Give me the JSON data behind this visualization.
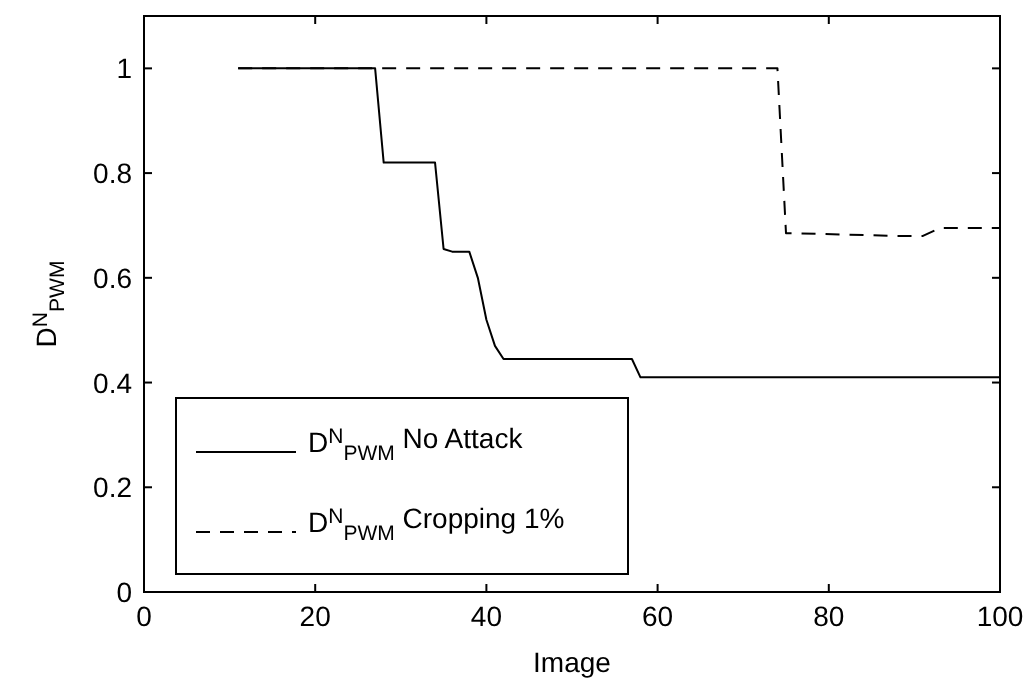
{
  "chart_data": {
    "type": "line",
    "xlabel": "Image",
    "ylabel": "D$^{N}$$_{PWM}$",
    "xlim": [
      0,
      100
    ],
    "ylim": [
      0,
      1.1
    ],
    "xticks": [
      0,
      20,
      40,
      60,
      80,
      100
    ],
    "yticks": [
      0,
      0.2,
      0.4,
      0.6,
      0.8,
      1
    ],
    "grid": false,
    "legend": "bottom left",
    "series": [
      {
        "name": "D$^{N}$$_{PWM}$ No Attack",
        "color": "#000000",
        "line_style": "solid",
        "x": [
          11,
          27,
          28,
          34,
          35,
          36,
          38,
          39,
          40,
          41,
          42,
          57,
          58,
          100
        ],
        "values": [
          1,
          1,
          0.82,
          0.82,
          0.655,
          0.65,
          0.65,
          0.6,
          0.52,
          0.47,
          0.445,
          0.445,
          0.41,
          0.41
        ]
      },
      {
        "name": "D$^{N}$$_{PWM}$ Cropping 1%",
        "color": "#000000",
        "line_style": "dashed",
        "x": [
          11,
          74,
          75,
          76,
          88,
          91,
          93,
          100
        ],
        "values": [
          1,
          1,
          0.685,
          0.685,
          0.68,
          0.68,
          0.695,
          0.695
        ]
      }
    ]
  }
}
